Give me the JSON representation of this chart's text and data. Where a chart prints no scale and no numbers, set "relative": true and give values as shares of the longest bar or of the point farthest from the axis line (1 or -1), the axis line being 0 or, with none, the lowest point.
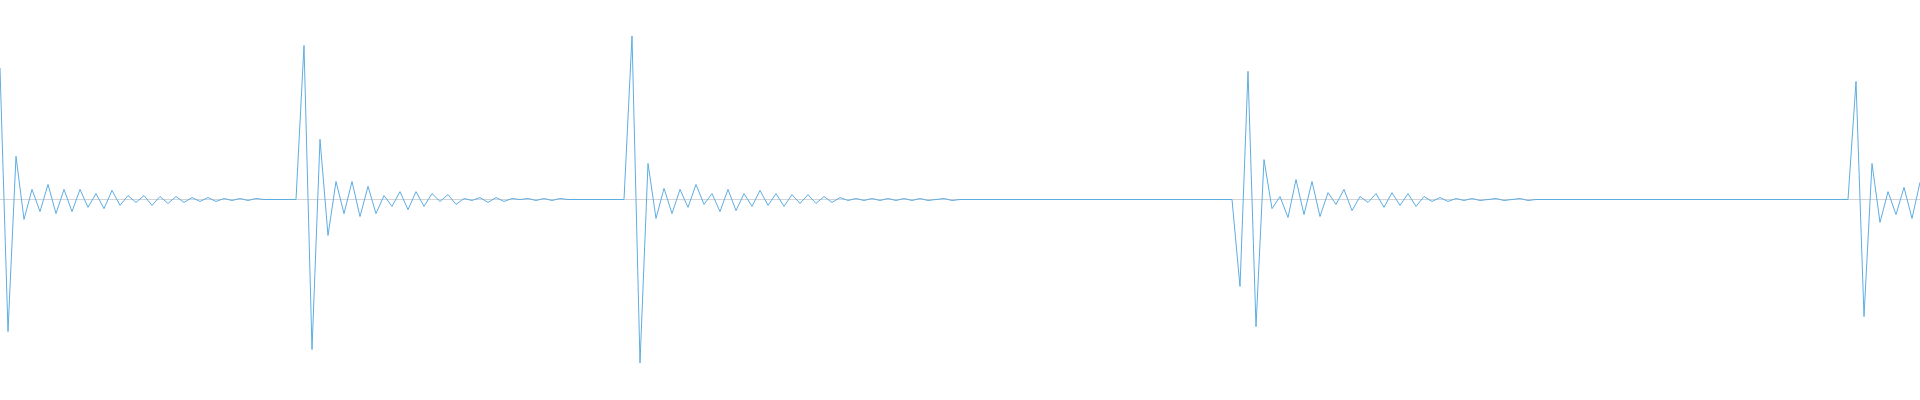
{
  "chart_data": {
    "type": "line",
    "relative": true,
    "color": "#5dade2",
    "categories": [
      null,
      null,
      null,
      null,
      null,
      null,
      null,
      null,
      null,
      null,
      null,
      null,
      null,
      null,
      null,
      null,
      null,
      null,
      null,
      null,
      null,
      null,
      null,
      null,
      null,
      null,
      null,
      null,
      null,
      null,
      null,
      null,
      null,
      null,
      null,
      null,
      null,
      null,
      null,
      null,
      null,
      null,
      null,
      null,
      null,
      null,
      null,
      null,
      null,
      null,
      null,
      null,
      null,
      null,
      null,
      null,
      null,
      null,
      null,
      null,
      null,
      null,
      null,
      null,
      null,
      null,
      null,
      null,
      null,
      null,
      null,
      null,
      null,
      null,
      null,
      null,
      null,
      null,
      null,
      null,
      null,
      null,
      null,
      null,
      null,
      null,
      null,
      null,
      null,
      null,
      null,
      null,
      null,
      null,
      null,
      null,
      null,
      null,
      null,
      null,
      null,
      null,
      null,
      null,
      null,
      null,
      null,
      null,
      null,
      null,
      null,
      null,
      null,
      null,
      null,
      null,
      null,
      null,
      null,
      null,
      null,
      null,
      null,
      null,
      null,
      null,
      null,
      null,
      null,
      null,
      null,
      null,
      null,
      null,
      null,
      null,
      null,
      null,
      null,
      null,
      null,
      null,
      null,
      null,
      null,
      null,
      null,
      null,
      null,
      null,
      null,
      null,
      null,
      null,
      null,
      null,
      null,
      null,
      null,
      null,
      null,
      null,
      null,
      null,
      null,
      null,
      null,
      null,
      null,
      null,
      null,
      null,
      null,
      null,
      null,
      null,
      null,
      null,
      null,
      null,
      null,
      null,
      null,
      null,
      null,
      null,
      null,
      null,
      null,
      null,
      null,
      null,
      null,
      null,
      null,
      null,
      null,
      null,
      null,
      null,
      null,
      null,
      null,
      null,
      null,
      null,
      null,
      null,
      null,
      null,
      null,
      null,
      null,
      null,
      null,
      null,
      null,
      null,
      null,
      null,
      null,
      null,
      null,
      null,
      null,
      null,
      null,
      null,
      null,
      null,
      null,
      null,
      null,
      null,
      null,
      null,
      null,
      null,
      null,
      null,
      null
    ],
    "values": [
      0.802,
      -0.808,
      0.264,
      -0.122,
      0.062,
      -0.074,
      0.092,
      -0.086,
      0.062,
      -0.074,
      0.062,
      -0.048,
      0.036,
      -0.056,
      0.056,
      -0.036,
      0.024,
      -0.018,
      0.024,
      -0.036,
      0.018,
      -0.024,
      0.018,
      -0.018,
      0.012,
      -0.012,
      0.012,
      -0.012,
      0.006,
      -0.006,
      0.006,
      -0.006,
      0.006,
      0,
      0,
      0,
      0,
      0,
      0.942,
      -0.918,
      0.368,
      -0.22,
      0.11,
      -0.086,
      0.11,
      -0.104,
      0.08,
      -0.086,
      0.024,
      -0.042,
      0.048,
      -0.062,
      0.048,
      -0.042,
      0.036,
      -0.012,
      0.03,
      -0.03,
      0.006,
      -0.006,
      0.012,
      -0.018,
      0.012,
      -0.012,
      0.006,
      0,
      0.006,
      -0.006,
      0.006,
      -0.006,
      0.006,
      0,
      0,
      0,
      0,
      0,
      0,
      0,
      0,
      1,
      -1,
      0.22,
      -0.116,
      0.068,
      -0.086,
      0.062,
      -0.048,
      0.092,
      -0.03,
      0.036,
      -0.074,
      0.062,
      -0.068,
      0.036,
      -0.042,
      0.056,
      -0.036,
      0.036,
      -0.042,
      0.03,
      -0.024,
      0.03,
      -0.024,
      0.018,
      -0.018,
      0.012,
      -0.006,
      0.006,
      -0.006,
      0.006,
      -0.006,
      0.006,
      -0.006,
      0.006,
      -0.006,
      0.006,
      -0.006,
      0,
      0.006,
      -0.006,
      0,
      0,
      0,
      0,
      0,
      0,
      0,
      0,
      0,
      0,
      0,
      0,
      0,
      0,
      0,
      0,
      0,
      0,
      0,
      0,
      0,
      0,
      0,
      0,
      0,
      0,
      0,
      0,
      0,
      0,
      0,
      0,
      0,
      0,
      0,
      -0.532,
      0.784,
      -0.778,
      0.244,
      -0.056,
      0.018,
      -0.11,
      0.122,
      -0.092,
      0.11,
      -0.104,
      0.042,
      -0.03,
      0.062,
      -0.068,
      0.018,
      -0.018,
      0.036,
      -0.048,
      0.042,
      -0.036,
      0.036,
      -0.042,
      0.018,
      -0.012,
      0.012,
      -0.012,
      0.006,
      -0.006,
      0.006,
      -0.006,
      0,
      0.006,
      -0.006,
      0,
      0.006,
      -0.006,
      0,
      0,
      0,
      0,
      0,
      0,
      0,
      0,
      0,
      0,
      0,
      0,
      0,
      0,
      0,
      0,
      0,
      0,
      0,
      0,
      0,
      0,
      0,
      0,
      0,
      0,
      0,
      0,
      0,
      0,
      0,
      0,
      0,
      0,
      0,
      0,
      0,
      0,
      0,
      0,
      0.722,
      -0.716,
      0.22,
      -0.14,
      0.048,
      -0.092,
      0.074,
      -0.116,
      0.104
    ]
  }
}
